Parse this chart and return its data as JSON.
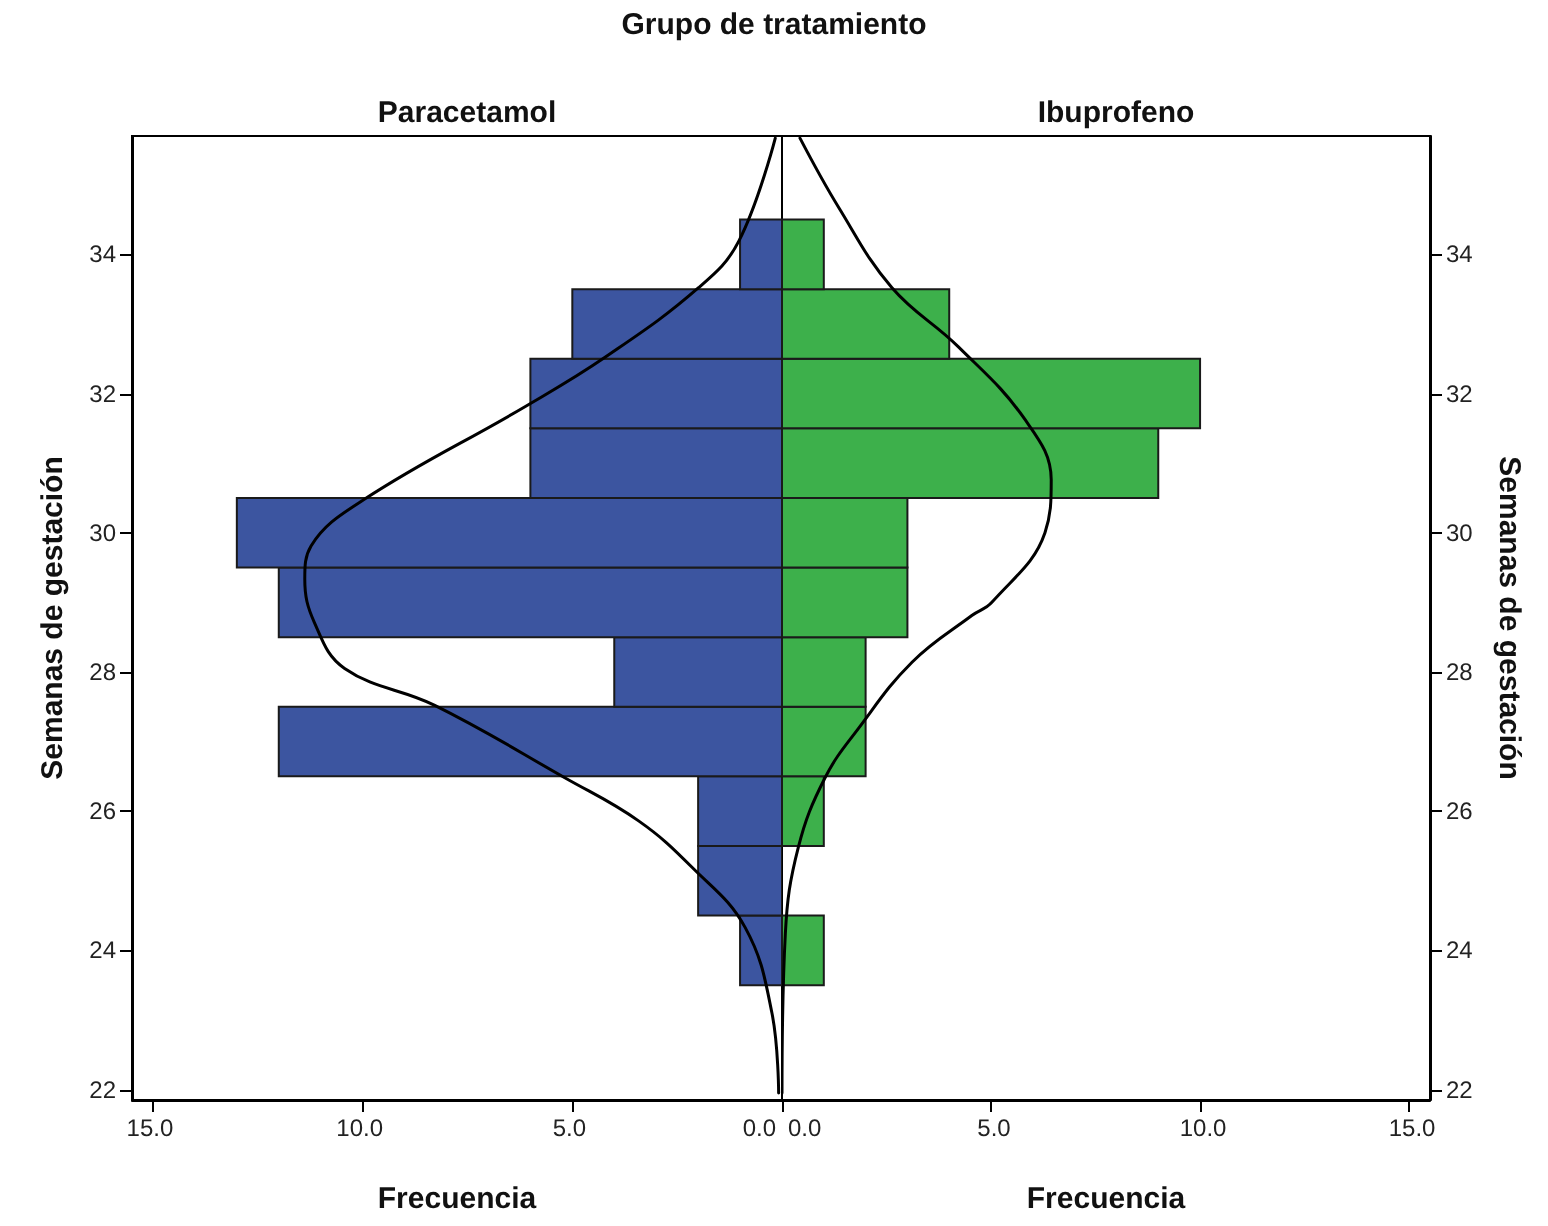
{
  "chart_data": [
    {
      "type": "histogram",
      "orientation": "horizontal",
      "title": "Paracetamol",
      "xlabel": "Frecuencia",
      "ylabel": "Semanas de gestación",
      "annotations": [
        "Grupo de tratamiento"
      ],
      "color": "#3c55a0",
      "bins": [
        23.5,
        24.5,
        25.5,
        26.5,
        27.5,
        28.5,
        29.5,
        30.5,
        31.5,
        32.5,
        33.5,
        34.5
      ],
      "values": [
        1,
        2,
        2,
        12,
        4,
        12,
        13,
        6,
        6,
        5,
        1
      ],
      "series": [
        {
          "type": "line",
          "color": "#000000",
          "x": [
            21.95,
            23.1,
            24.33,
            25.19,
            25.86,
            26.48,
            27.52,
            28.05,
            28.71,
            29.33,
            29.81,
            30.48,
            31.81,
            32.52,
            33.52,
            34.19,
            35.67
          ],
          "values": [
            0.08,
            0.24,
            0.88,
            2.14,
            3.42,
            5.18,
            8.28,
            10.43,
            11.15,
            11.38,
            11.23,
            9.96,
            6.13,
            4.22,
            1.99,
            1.03,
            0.16
          ]
        }
      ],
      "xlim": [
        15.5,
        0
      ],
      "xticks": [
        {
          "value": 15,
          "label": "15.0"
        },
        {
          "value": 10,
          "label": "10.0"
        },
        {
          "value": 5,
          "label": "5.0"
        },
        {
          "value": 0,
          "label": "0.0"
        }
      ],
      "ylim": [
        21.85,
        35.7
      ],
      "yticks": [
        22,
        24,
        26,
        28,
        30,
        32,
        34
      ]
    },
    {
      "type": "histogram",
      "orientation": "horizontal",
      "title": "Ibuprofeno",
      "xlabel": "Frecuencia",
      "ylabel": "Semanas de gestación",
      "color": "#3db04b",
      "bins": [
        23.5,
        24.5,
        25.5,
        26.5,
        27.5,
        28.5,
        29.5,
        30.5,
        31.5,
        32.5,
        33.5,
        34.5
      ],
      "values": [
        1,
        0,
        1,
        2,
        2,
        3,
        3,
        9,
        10,
        4,
        1
      ],
      "series": [
        {
          "type": "line",
          "color": "#000000",
          "x": [
            21.95,
            24.24,
            25.48,
            26.48,
            27.19,
            28.14,
            28.81,
            29.0,
            30.0,
            30.76,
            31.62,
            32.67,
            33.52,
            34.67,
            35.67
          ],
          "values": [
            0,
            0.08,
            0.39,
            1.03,
            1.83,
            3.11,
            4.54,
            5.02,
            6.29,
            6.44,
            5.82,
            4.22,
            2.63,
            1.36,
            0.43
          ]
        }
      ],
      "xlim": [
        0,
        15.5
      ],
      "xticks": [
        {
          "value": 0,
          "label": "0.0"
        },
        {
          "value": 5,
          "label": "5.0"
        },
        {
          "value": 10,
          "label": "10.0"
        },
        {
          "value": 15,
          "label": "15.0"
        }
      ],
      "ylim": [
        21.85,
        35.7
      ],
      "yticks": [
        22,
        24,
        26,
        28,
        30,
        32,
        34
      ]
    }
  ]
}
